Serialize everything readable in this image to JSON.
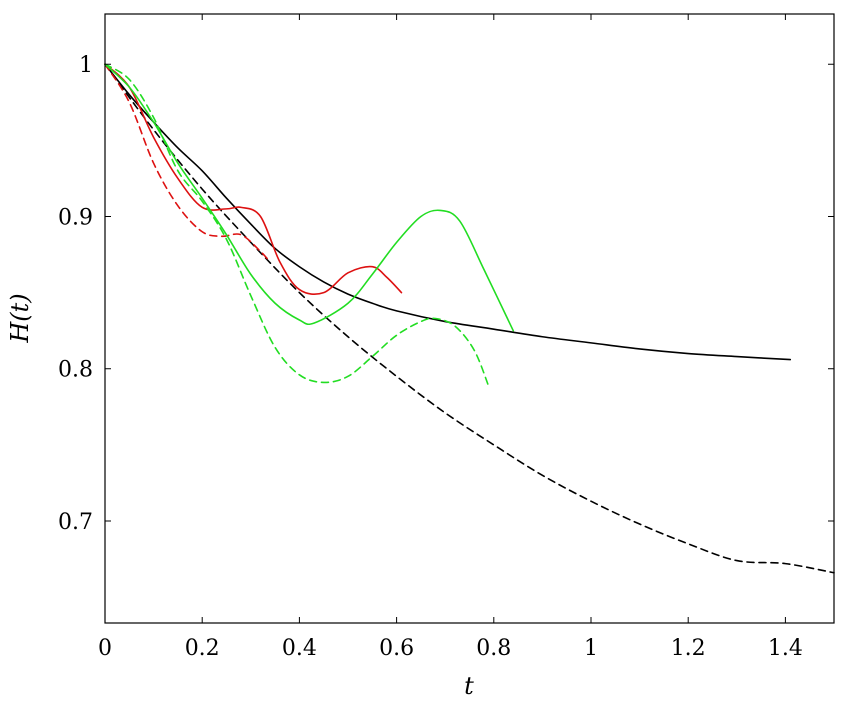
{
  "chart_data": {
    "type": "line",
    "title": "",
    "xlabel": "t",
    "ylabel": "H(t)",
    "xlim": [
      0,
      1.5
    ],
    "ylim": [
      0.633,
      1.033
    ],
    "xticks": [
      0,
      0.2,
      0.4,
      0.6,
      0.8,
      1,
      1.2,
      1.4
    ],
    "xtick_labels": [
      "0",
      "0.2",
      "0.4",
      "0.6",
      "0.8",
      "1",
      "1.2",
      "1.4"
    ],
    "yticks": [
      0.7,
      0.8,
      0.9,
      1
    ],
    "ytick_labels": [
      "0.7",
      "0.8",
      "0.9",
      "1"
    ],
    "grid": false,
    "legend": "none",
    "series": [
      {
        "color": "#000000",
        "dash": "solid",
        "x": [
          0,
          0.05,
          0.1,
          0.15,
          0.2,
          0.25,
          0.3,
          0.35,
          0.4,
          0.45,
          0.5,
          0.55,
          0.6,
          0.7,
          0.8,
          0.9,
          1.0,
          1.1,
          1.2,
          1.3,
          1.41
        ],
        "y": [
          1.0,
          0.98,
          0.962,
          0.945,
          0.93,
          0.912,
          0.895,
          0.879,
          0.867,
          0.857,
          0.849,
          0.843,
          0.838,
          0.831,
          0.826,
          0.821,
          0.817,
          0.813,
          0.81,
          0.808,
          0.806
        ]
      },
      {
        "color": "#000000",
        "dash": "dashed",
        "x": [
          0,
          0.1,
          0.2,
          0.3,
          0.4,
          0.5,
          0.6,
          0.7,
          0.8,
          0.9,
          1.0,
          1.1,
          1.2,
          1.3,
          1.4,
          1.5
        ],
        "y": [
          1.0,
          0.957,
          0.918,
          0.883,
          0.85,
          0.821,
          0.795,
          0.771,
          0.75,
          0.73,
          0.713,
          0.698,
          0.685,
          0.674,
          0.672,
          0.666
        ]
      },
      {
        "color": "#dd1111",
        "dash": "solid",
        "x": [
          0,
          0.05,
          0.1,
          0.15,
          0.2,
          0.25,
          0.28,
          0.32,
          0.36,
          0.4,
          0.45,
          0.5,
          0.55,
          0.58,
          0.61
        ],
        "y": [
          1.0,
          0.985,
          0.952,
          0.925,
          0.906,
          0.905,
          0.906,
          0.9,
          0.87,
          0.852,
          0.85,
          0.863,
          0.867,
          0.86,
          0.85
        ]
      },
      {
        "color": "#dd1111",
        "dash": "dashed",
        "x": [
          0,
          0.05,
          0.1,
          0.15,
          0.2,
          0.24,
          0.28,
          0.32,
          0.34
        ],
        "y": [
          1.0,
          0.975,
          0.935,
          0.907,
          0.89,
          0.887,
          0.888,
          0.877,
          0.87
        ]
      },
      {
        "color": "#22dd22",
        "dash": "solid",
        "x": [
          0,
          0.05,
          0.1,
          0.15,
          0.2,
          0.25,
          0.3,
          0.35,
          0.4,
          0.43,
          0.5,
          0.55,
          0.6,
          0.65,
          0.69,
          0.73,
          0.78,
          0.84
        ],
        "y": [
          1.0,
          0.985,
          0.962,
          0.935,
          0.912,
          0.888,
          0.862,
          0.843,
          0.832,
          0.83,
          0.843,
          0.862,
          0.883,
          0.9,
          0.904,
          0.897,
          0.865,
          0.825
        ]
      },
      {
        "color": "#22dd22",
        "dash": "dashed",
        "x": [
          0,
          0.05,
          0.1,
          0.15,
          0.2,
          0.25,
          0.3,
          0.35,
          0.4,
          0.45,
          0.5,
          0.55,
          0.6,
          0.65,
          0.68,
          0.72,
          0.76,
          0.79
        ],
        "y": [
          1.0,
          0.99,
          0.965,
          0.93,
          0.91,
          0.885,
          0.848,
          0.814,
          0.796,
          0.791,
          0.795,
          0.808,
          0.822,
          0.831,
          0.833,
          0.828,
          0.812,
          0.788
        ]
      }
    ]
  }
}
